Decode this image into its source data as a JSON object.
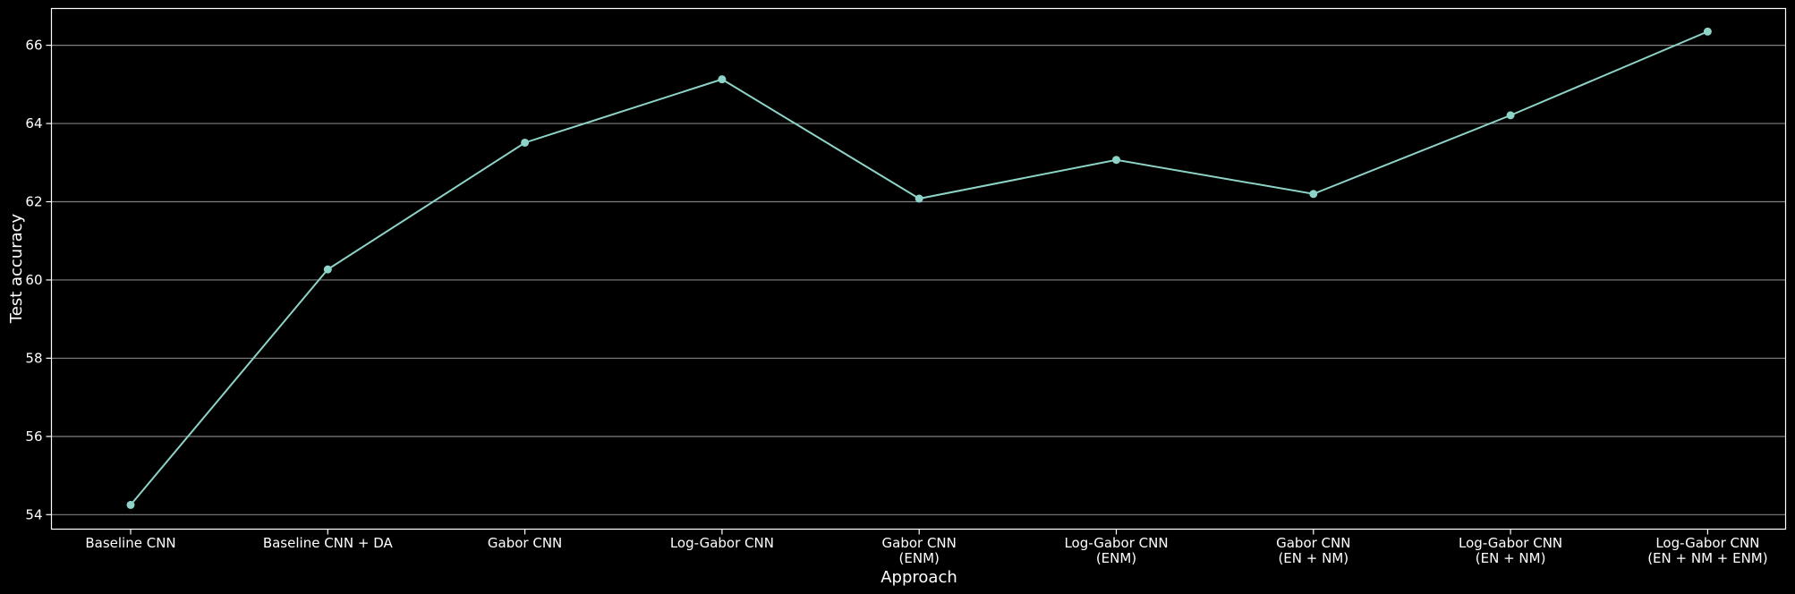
{
  "chart_data": {
    "type": "line",
    "xlabel": "Approach",
    "ylabel": "Test accuracy",
    "categories": [
      [
        "Baseline CNN"
      ],
      [
        "Baseline CNN + DA"
      ],
      [
        "Gabor CNN"
      ],
      [
        "Log-Gabor CNN"
      ],
      [
        "Gabor CNN",
        "(ENM)"
      ],
      [
        "Log-Gabor CNN",
        "(ENM)"
      ],
      [
        "Gabor CNN",
        "(EN + NM)"
      ],
      [
        "Log-Gabor CNN",
        "(EN + NM)"
      ],
      [
        "Log-Gabor CNN",
        "(EN + NM + ENM)"
      ]
    ],
    "series": [
      {
        "values": [
          54.25,
          60.27,
          63.51,
          65.13,
          62.08,
          63.07,
          62.2,
          64.21,
          66.35
        ]
      }
    ],
    "ylim": [
      53.63,
      66.94
    ],
    "yticks": [
      54,
      56,
      58,
      60,
      62,
      64,
      66
    ],
    "grid": "horizontal",
    "colors": {
      "background": "#000000",
      "line": "#8dd3c7",
      "grid": "#7f7f7f",
      "text": "#ffffff",
      "spine": "#ffffff"
    }
  }
}
